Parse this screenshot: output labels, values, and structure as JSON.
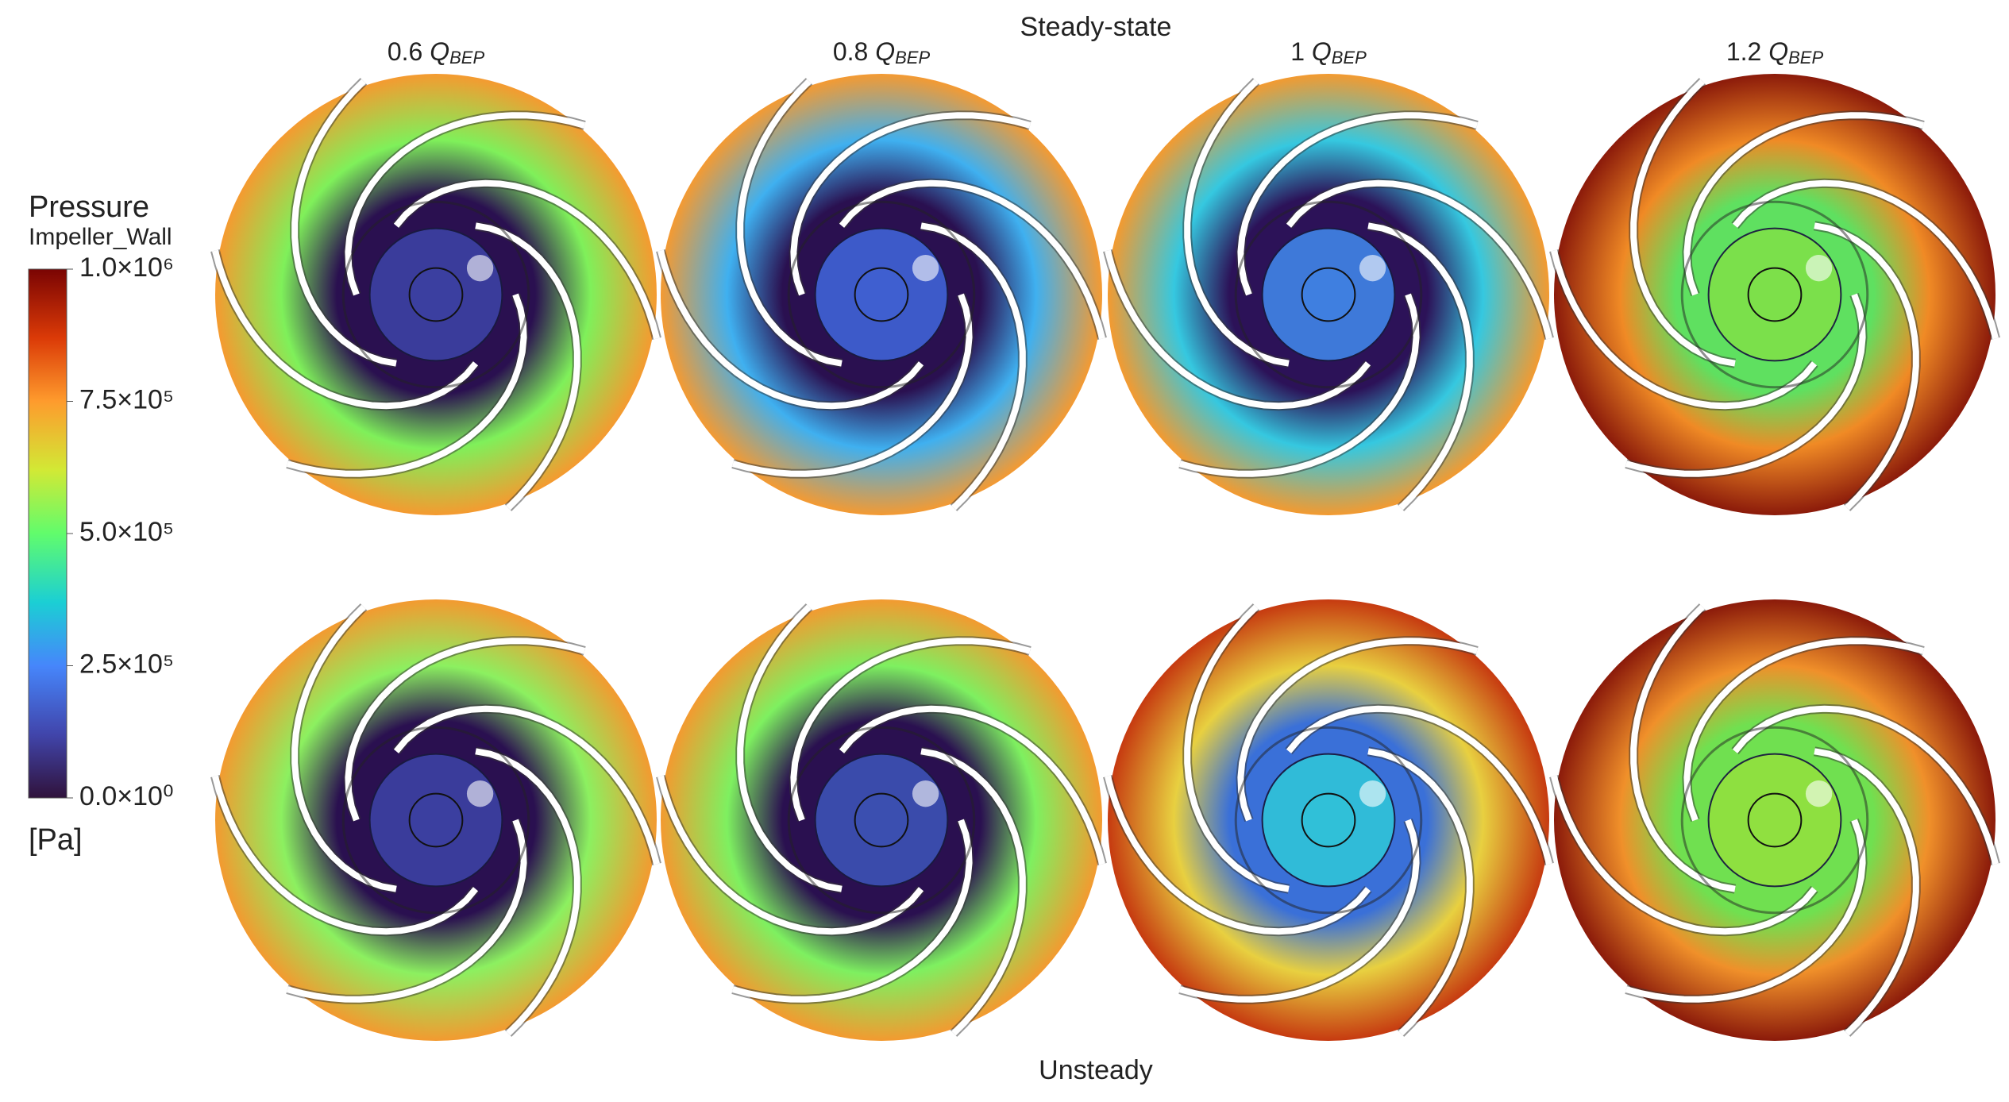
{
  "figure": {
    "top_label": "Steady-state",
    "bottom_label": "Unsteady",
    "columns": [
      {
        "number": "0.6",
        "symbol": "Q",
        "subscript": "BEP"
      },
      {
        "number": "0.8",
        "symbol": "Q",
        "subscript": "BEP"
      },
      {
        "number": "1",
        "symbol": "Q",
        "subscript": "BEP"
      },
      {
        "number": "1.2",
        "symbol": "Q",
        "subscript": "BEP"
      }
    ],
    "colorbar": {
      "title": "Pressure",
      "subtitle": "Impeller_Wall",
      "unit": "[Pa]",
      "lim": [
        0,
        1000000
      ],
      "ticks": [
        {
          "value": 1000000,
          "label": "1.0×10⁶"
        },
        {
          "value": 750000,
          "label": "7.5×10⁵"
        },
        {
          "value": 500000,
          "label": "5.0×10⁵"
        },
        {
          "value": 250000,
          "label": "2.5×10⁵"
        },
        {
          "value": 0,
          "label": "0.0×10⁰"
        }
      ]
    }
  }
}
